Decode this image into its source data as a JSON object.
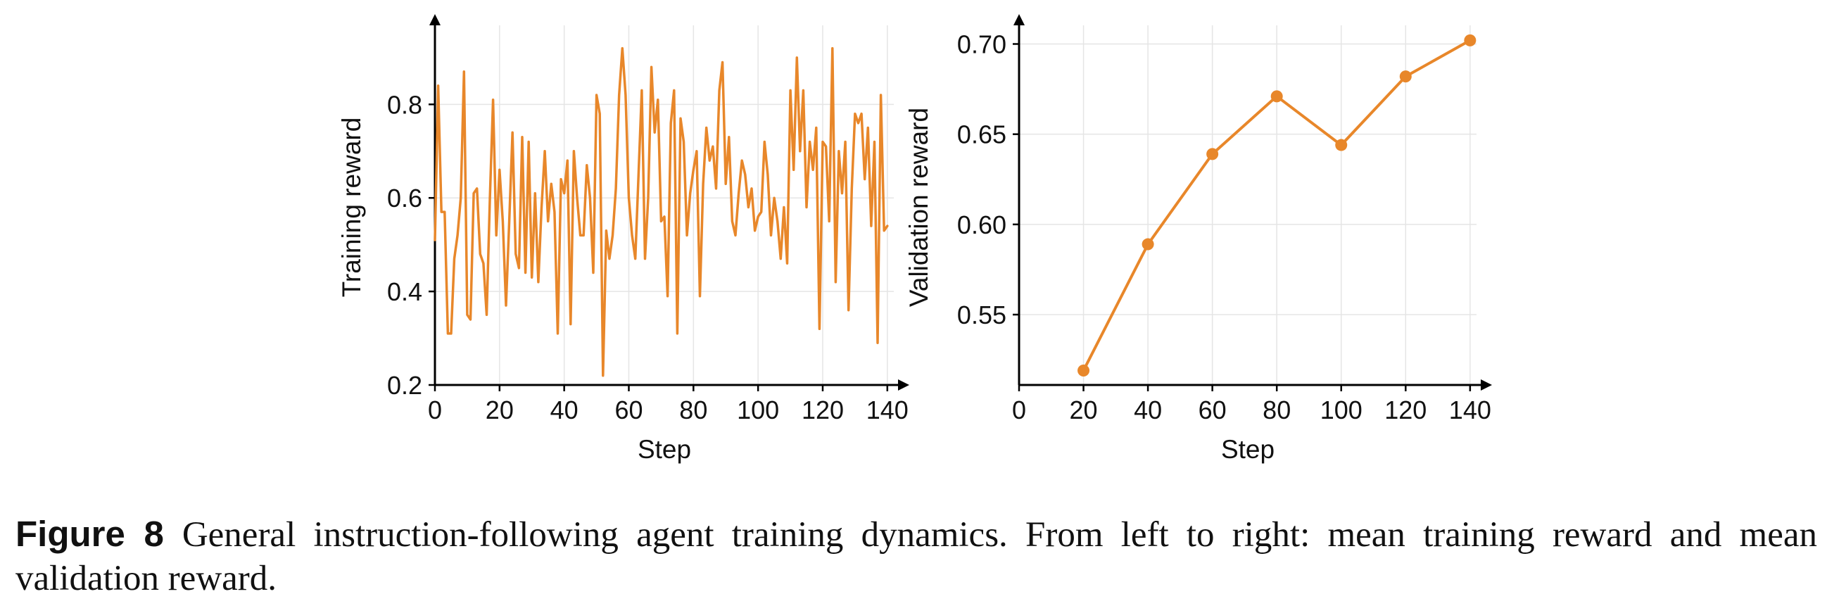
{
  "figure": {
    "label": "Figure 8",
    "caption": "General instruction-following agent training dynamics. From left to right: mean training reward and mean validation reward."
  },
  "colors": {
    "series": "#E8872A",
    "grid": "#e5e5e5",
    "axis": "#000000"
  },
  "chart_data": [
    {
      "type": "line",
      "xlabel": "Step",
      "ylabel": "Training reward",
      "xlim": [
        0,
        142
      ],
      "ylim": [
        0.2,
        0.96
      ],
      "xticks": [
        0,
        20,
        40,
        60,
        80,
        100,
        120,
        140
      ],
      "yticks": [
        0.2,
        0.4,
        0.6,
        0.8
      ],
      "ytick_labels": [
        "0.2",
        "0.4",
        "0.6",
        "0.8"
      ],
      "grid": true,
      "markers": false,
      "series": [
        {
          "x": [
            0,
            1,
            2,
            3,
            4,
            5,
            6,
            7,
            8,
            9,
            10,
            11,
            12,
            13,
            14,
            15,
            16,
            17,
            18,
            19,
            20,
            21,
            22,
            23,
            24,
            25,
            26,
            27,
            28,
            29,
            30,
            31,
            32,
            33,
            34,
            35,
            36,
            37,
            38,
            39,
            40,
            41,
            42,
            43,
            44,
            45,
            46,
            47,
            48,
            49,
            50,
            51,
            52,
            53,
            54,
            55,
            56,
            57,
            58,
            59,
            60,
            61,
            62,
            63,
            64,
            65,
            66,
            67,
            68,
            69,
            70,
            71,
            72,
            73,
            74,
            75,
            76,
            77,
            78,
            79,
            80,
            81,
            82,
            83,
            84,
            85,
            86,
            87,
            88,
            89,
            90,
            91,
            92,
            93,
            94,
            95,
            96,
            97,
            98,
            99,
            100,
            101,
            102,
            103,
            104,
            105,
            106,
            107,
            108,
            109,
            110,
            111,
            112,
            113,
            114,
            115,
            116,
            117,
            118,
            119,
            120,
            121,
            122,
            123,
            124,
            125,
            126,
            127,
            128,
            129,
            130,
            131,
            132,
            133,
            134,
            135,
            136,
            137,
            138,
            139,
            140
          ],
          "y": [
            0.51,
            0.84,
            0.57,
            0.57,
            0.31,
            0.31,
            0.47,
            0.52,
            0.6,
            0.87,
            0.35,
            0.34,
            0.61,
            0.62,
            0.48,
            0.46,
            0.35,
            0.6,
            0.81,
            0.52,
            0.66,
            0.55,
            0.37,
            0.55,
            0.74,
            0.48,
            0.45,
            0.73,
            0.44,
            0.72,
            0.43,
            0.61,
            0.42,
            0.58,
            0.7,
            0.55,
            0.63,
            0.57,
            0.31,
            0.64,
            0.61,
            0.68,
            0.33,
            0.7,
            0.6,
            0.52,
            0.52,
            0.67,
            0.6,
            0.44,
            0.82,
            0.78,
            0.22,
            0.53,
            0.47,
            0.52,
            0.62,
            0.82,
            0.92,
            0.82,
            0.6,
            0.52,
            0.47,
            0.65,
            0.83,
            0.47,
            0.6,
            0.88,
            0.74,
            0.81,
            0.55,
            0.56,
            0.39,
            0.76,
            0.83,
            0.31,
            0.77,
            0.72,
            0.52,
            0.61,
            0.66,
            0.7,
            0.39,
            0.63,
            0.75,
            0.68,
            0.71,
            0.62,
            0.83,
            0.89,
            0.63,
            0.73,
            0.55,
            0.52,
            0.61,
            0.68,
            0.65,
            0.58,
            0.62,
            0.53,
            0.56,
            0.57,
            0.72,
            0.65,
            0.52,
            0.6,
            0.55,
            0.47,
            0.58,
            0.46,
            0.83,
            0.66,
            0.9,
            0.7,
            0.83,
            0.58,
            0.72,
            0.66,
            0.75,
            0.32,
            0.72,
            0.71,
            0.55,
            0.92,
            0.42,
            0.7,
            0.61,
            0.72,
            0.36,
            0.62,
            0.78,
            0.76,
            0.78,
            0.64,
            0.75,
            0.54,
            0.72,
            0.29,
            0.82,
            0.53,
            0.54
          ]
        }
      ]
    },
    {
      "type": "line",
      "xlabel": "Step",
      "ylabel": "Validation reward",
      "xlim": [
        0,
        142
      ],
      "ylim": [
        0.511,
        0.708
      ],
      "xticks": [
        0,
        20,
        40,
        60,
        80,
        100,
        120,
        140
      ],
      "yticks": [
        0.55,
        0.6,
        0.65,
        0.7
      ],
      "ytick_labels": [
        "0.55",
        "0.60",
        "0.65",
        "0.70"
      ],
      "grid": true,
      "markers": true,
      "series": [
        {
          "x": [
            20,
            40,
            60,
            80,
            100,
            120,
            140
          ],
          "y": [
            0.519,
            0.589,
            0.639,
            0.671,
            0.644,
            0.682,
            0.702
          ]
        }
      ]
    }
  ]
}
